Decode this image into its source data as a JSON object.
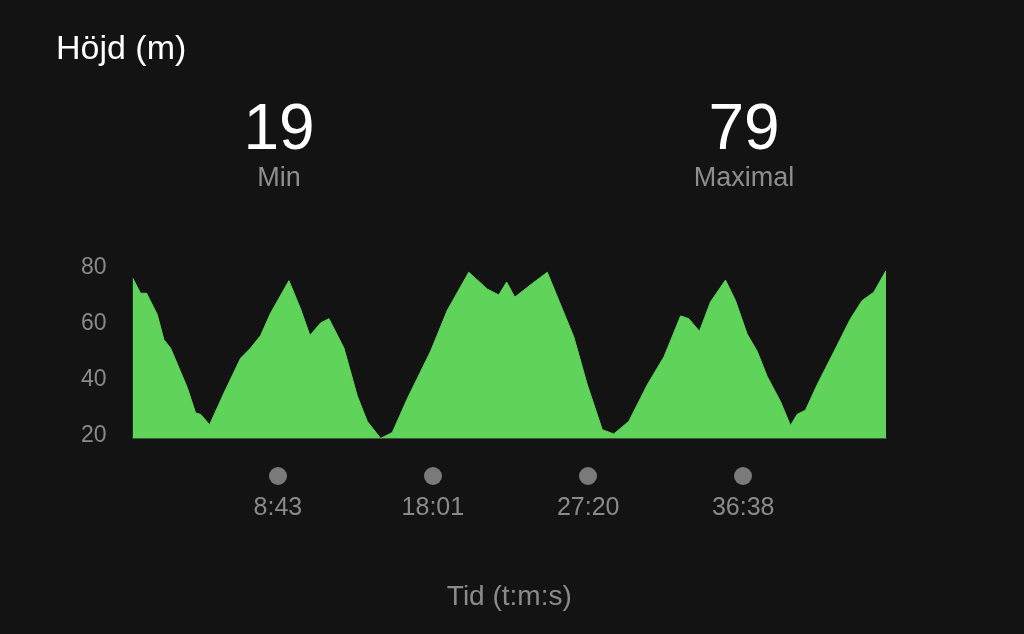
{
  "chart_data": {
    "type": "area",
    "title": "Höjd (m)",
    "xlabel": "Tid (t:m:s)",
    "annotations": [
      "19",
      "Min",
      "79",
      "Maximal"
    ],
    "x": [
      0,
      0.48,
      0.84,
      1.48,
      1.88,
      2.28,
      3.28,
      3.78,
      4.08,
      4.62,
      5.48,
      6.48,
      7.08,
      7.68,
      8.28,
      9.38,
      10.08,
      10.64,
      11.28,
      11.78,
      12.68,
      13.48,
      14.08,
      14.88,
      15.58,
      16.48,
      17.88,
      18.88,
      20.17,
      21.28,
      21.97,
      22.44,
      22.93,
      23.98,
      24.88,
      25.78,
      26.47,
      27.28,
      28.18,
      28.87,
      29.77,
      30.88,
      31.88,
      32.88,
      33.37,
      34.01,
      34.67,
      35.57,
      36.17,
      36.87,
      37.47,
      38.07,
      38.87,
      39.47,
      39.87,
      40.37,
      41.07,
      42.27,
      43.07,
      43.77,
      44.47,
      45.2
    ],
    "series": [
      {
        "color": "#5fd35a",
        "values": [
          76.4,
          70.9,
          70.9,
          63.3,
          54.3,
          51.3,
          37.2,
          28.1,
          27.6,
          23.9,
          35.2,
          47.7,
          51.3,
          55.8,
          63.8,
          75.4,
          65.3,
          55.8,
          60.3,
          61.8,
          51.3,
          34.2,
          25.1,
          19,
          21.1,
          33.2,
          50.2,
          64.8,
          78.4,
          72.4,
          70.3,
          74.9,
          69.5,
          74.4,
          78.4,
          65.3,
          55.3,
          38.2,
          22.1,
          20.6,
          25.1,
          38.2,
          48.2,
          62.8,
          61.8,
          57.3,
          67.8,
          75.6,
          68.3,
          56.3,
          50.2,
          41.2,
          32.2,
          23.6,
          27.6,
          29.1,
          38.2,
          52.3,
          61.8,
          68.3,
          71.3,
          79
        ]
      }
    ],
    "xlim": [
      0,
      45.2
    ],
    "xticks": [
      {
        "value": 8.717,
        "label": "8:43"
      },
      {
        "value": 18.017,
        "label": "18:01"
      },
      {
        "value": 27.333,
        "label": "27:20"
      },
      {
        "value": 36.633,
        "label": "36:38"
      }
    ],
    "ylim": [
      19,
      80
    ],
    "yticks": [
      20,
      40,
      60,
      80
    ],
    "grid": false,
    "legend": false,
    "marker": "none"
  }
}
